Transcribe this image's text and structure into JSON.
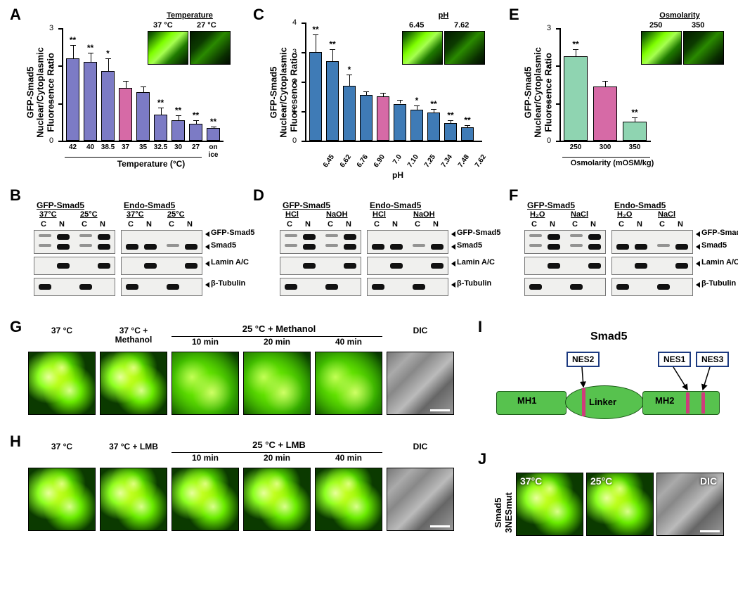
{
  "letters": {
    "A": "A",
    "B": "B",
    "C": "C",
    "D": "D",
    "E": "E",
    "F": "F",
    "G": "G",
    "H": "H",
    "I": "I",
    "J": "J"
  },
  "ylabel": "GFP-Smad5\nNuclear/Cytoplasmic\nFluoresence Ratio",
  "panelA": {
    "type": "bar",
    "categories": [
      "42",
      "40",
      "38.5",
      "37",
      "35",
      "32.5",
      "30",
      "27",
      "on ice"
    ],
    "values": [
      2.2,
      2.1,
      1.85,
      1.4,
      1.3,
      0.7,
      0.55,
      0.45,
      0.33
    ],
    "err": [
      0.35,
      0.25,
      0.35,
      0.2,
      0.15,
      0.18,
      0.12,
      0.1,
      0.05
    ],
    "sig": [
      "**",
      "**",
      "*",
      "",
      "",
      "**",
      "**",
      "**",
      "**"
    ],
    "colors": [
      "#7c7bc5",
      "#7c7bc5",
      "#7c7bc5",
      "#d66aa6",
      "#7c7bc5",
      "#7c7bc5",
      "#7c7bc5",
      "#7c7bc5",
      "#7c7bc5"
    ],
    "ylim": [
      0,
      3
    ],
    "yticks": [
      0,
      1,
      2,
      3
    ],
    "xlabel": "Temperature (°C)",
    "inset_title": "Temperature",
    "inset_a": "37 °C",
    "inset_b": "27 °C"
  },
  "panelC": {
    "type": "bar",
    "categories": [
      "6.45",
      "6.62",
      "6.76",
      "6.90",
      "7.0",
      "7.10",
      "7.25",
      "7.34",
      "7.48",
      "7.62"
    ],
    "values": [
      3.0,
      2.7,
      1.85,
      1.55,
      1.5,
      1.25,
      1.05,
      0.95,
      0.6,
      0.45
    ],
    "err": [
      0.6,
      0.4,
      0.4,
      0.12,
      0.12,
      0.12,
      0.15,
      0.12,
      0.1,
      0.08
    ],
    "sig": [
      "**",
      "**",
      "*",
      "",
      "",
      "",
      "*",
      "**",
      "**",
      "**"
    ],
    "colors": [
      "#3f7bb6",
      "#3f7bb6",
      "#3f7bb6",
      "#3f7bb6",
      "#d66aa6",
      "#3f7bb6",
      "#3f7bb6",
      "#3f7bb6",
      "#3f7bb6",
      "#3f7bb6"
    ],
    "ylim": [
      0,
      4
    ],
    "yticks": [
      0,
      1,
      2,
      3,
      4
    ],
    "xlabel": "pH",
    "inset_title": "pH",
    "inset_a": "6.45",
    "inset_b": "7.62"
  },
  "panelE": {
    "type": "bar",
    "categories": [
      "250",
      "300",
      "350"
    ],
    "values": [
      2.25,
      1.45,
      0.5
    ],
    "err": [
      0.18,
      0.15,
      0.12
    ],
    "sig": [
      "**",
      "",
      "**"
    ],
    "colors": [
      "#8fd4b1",
      "#d66aa6",
      "#8fd4b1"
    ],
    "ylim": [
      0,
      3
    ],
    "yticks": [
      0,
      1,
      2,
      3
    ],
    "xlabel": "Osmolarity (mOSM/kg)",
    "inset_title": "Osmolarity",
    "inset_a": "250",
    "inset_b": "350"
  },
  "blotCommon": {
    "gfp": "GFP-Smad5",
    "endo": "Endo-Smad5",
    "cn": [
      "C",
      "N",
      "C",
      "N"
    ],
    "rowlabels": [
      "GFP-Smad5",
      "Smad5",
      "Lamin A/C",
      "β-Tubulin"
    ]
  },
  "panelB": {
    "conds": [
      "37°C",
      "25°C"
    ]
  },
  "panelD": {
    "conds": [
      "HCl",
      "NaOH"
    ]
  },
  "panelF": {
    "conds": [
      "H₂O",
      "NaCl"
    ]
  },
  "panelG": {
    "row_at37": "37 °C",
    "pair": "37 °C + Methanol",
    "block": "25 °C   +   Methanol",
    "times": [
      "10 min",
      "20 min",
      "40 min"
    ],
    "dic": "DIC"
  },
  "panelH": {
    "row_at37": "37 °C",
    "pair": "37 °C + LMB",
    "block": "25 °C   +   LMB",
    "times": [
      "10 min",
      "20 min",
      "40 min"
    ],
    "dic": "DIC"
  },
  "panelI": {
    "title": "Smad5",
    "mh1": "MH1",
    "linker": "Linker",
    "mh2": "MH2",
    "nes": [
      "NES2",
      "NES1",
      "NES3"
    ]
  },
  "panelJ": {
    "side": "Smad5\n3NESmut",
    "labels": [
      "37°C",
      "25°C",
      "DIC"
    ]
  }
}
